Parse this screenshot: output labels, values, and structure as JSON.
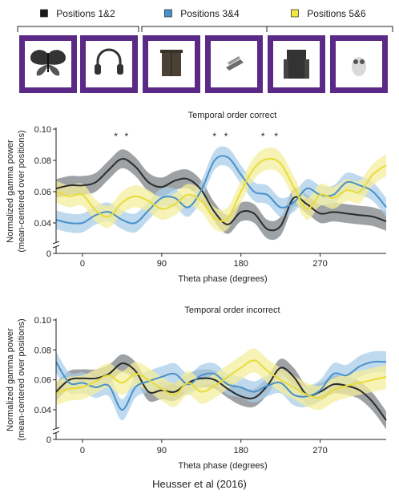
{
  "header": {
    "groups": [
      {
        "label": "Positions 1&2",
        "color": "#1a1a1a",
        "icons": [
          "butterfly-icon",
          "headphones-icon"
        ]
      },
      {
        "label": "Positions 3&4",
        "color": "#4a90c9",
        "icons": [
          "cabinet-icon",
          "clip-icon"
        ]
      },
      {
        "label": "Positions 5&6",
        "color": "#f2e640",
        "icons": [
          "tower-icon",
          "owl-icon"
        ]
      }
    ],
    "frame_color": "#5b2a86"
  },
  "chart_data": [
    {
      "type": "line",
      "title": "Temporal order correct",
      "xlabel": "Theta phase (degrees)",
      "ylabel": "Normalized gamma power\n(mean-centered over positions)",
      "xlim": [
        -30,
        345
      ],
      "ylim": [
        0.03,
        0.1
      ],
      "xticks": [
        0,
        90,
        180,
        270
      ],
      "yticks": [
        0.04,
        0.06,
        0.08,
        0.1
      ],
      "ytick_labels": [
        "0.04",
        "0.06",
        "0.08",
        "0.10"
      ],
      "zero_label": "0",
      "significance_marks": [
        {
          "x": 38,
          "label": "*"
        },
        {
          "x": 50,
          "label": "*"
        },
        {
          "x": 150,
          "label": "*"
        },
        {
          "x": 163,
          "label": "*"
        },
        {
          "x": 205,
          "label": "*"
        },
        {
          "x": 220,
          "label": "*"
        }
      ],
      "x": [
        -30,
        -15,
        0,
        15,
        30,
        45,
        60,
        75,
        90,
        105,
        120,
        135,
        150,
        165,
        180,
        195,
        210,
        225,
        240,
        255,
        270,
        285,
        300,
        315,
        330,
        345
      ],
      "series": [
        {
          "name": "Positions 1&2",
          "color": "#2b2b2b",
          "band": "#7d8387",
          "values": [
            0.062,
            0.064,
            0.064,
            0.066,
            0.074,
            0.081,
            0.076,
            0.066,
            0.063,
            0.067,
            0.068,
            0.061,
            0.047,
            0.039,
            0.047,
            0.046,
            0.036,
            0.038,
            0.056,
            0.052,
            0.046,
            0.047,
            0.046,
            0.045,
            0.044,
            0.041
          ],
          "err": 0.006
        },
        {
          "name": "Positions 3&4",
          "color": "#4a90c9",
          "band": "#a9cde8",
          "values": [
            0.042,
            0.04,
            0.04,
            0.045,
            0.047,
            0.042,
            0.04,
            0.048,
            0.056,
            0.056,
            0.05,
            0.061,
            0.08,
            0.082,
            0.071,
            0.06,
            0.058,
            0.05,
            0.053,
            0.062,
            0.058,
            0.058,
            0.066,
            0.064,
            0.06,
            0.05
          ],
          "err": 0.006
        },
        {
          "name": "Positions 5&6",
          "color": "#e8dc3a",
          "band": "#f4ee9c",
          "values": [
            0.06,
            0.057,
            0.058,
            0.048,
            0.044,
            0.053,
            0.057,
            0.054,
            0.049,
            0.052,
            0.058,
            0.054,
            0.043,
            0.043,
            0.06,
            0.075,
            0.081,
            0.078,
            0.063,
            0.049,
            0.058,
            0.056,
            0.061,
            0.06,
            0.071,
            0.077
          ],
          "err": 0.007
        }
      ]
    },
    {
      "type": "line",
      "title": "Temporal order incorrect",
      "xlabel": "Theta phase (degrees)",
      "ylabel": "Normalized gamma power\n(mean-centered over positions)",
      "xlim": [
        -30,
        345
      ],
      "ylim": [
        0.03,
        0.1
      ],
      "xticks": [
        0,
        90,
        180,
        270
      ],
      "yticks": [
        0.04,
        0.06,
        0.08,
        0.1
      ],
      "ytick_labels": [
        "0.04",
        "0.06",
        "0.08",
        "0.10"
      ],
      "zero_label": "0",
      "significance_marks": [],
      "x": [
        -30,
        -15,
        0,
        15,
        30,
        45,
        60,
        75,
        90,
        105,
        120,
        135,
        150,
        165,
        180,
        195,
        210,
        225,
        240,
        255,
        270,
        285,
        300,
        315,
        330,
        345
      ],
      "series": [
        {
          "name": "Positions 1&2",
          "color": "#2b2b2b",
          "band": "#7d8387",
          "values": [
            0.052,
            0.06,
            0.061,
            0.061,
            0.064,
            0.071,
            0.066,
            0.052,
            0.053,
            0.052,
            0.058,
            0.061,
            0.06,
            0.054,
            0.049,
            0.048,
            0.056,
            0.068,
            0.062,
            0.05,
            0.052,
            0.057,
            0.056,
            0.053,
            0.045,
            0.033
          ],
          "err": 0.006
        },
        {
          "name": "Positions 3&4",
          "color": "#4a90c9",
          "band": "#a9cde8",
          "values": [
            0.072,
            0.058,
            0.058,
            0.055,
            0.056,
            0.04,
            0.055,
            0.059,
            0.062,
            0.064,
            0.057,
            0.063,
            0.064,
            0.057,
            0.055,
            0.052,
            0.056,
            0.058,
            0.05,
            0.049,
            0.053,
            0.064,
            0.063,
            0.069,
            0.072,
            0.072
          ],
          "err": 0.007
        },
        {
          "name": "Positions 5&6",
          "color": "#e8dc3a",
          "band": "#f4ee9c",
          "values": [
            0.051,
            0.054,
            0.055,
            0.059,
            0.063,
            0.058,
            0.064,
            0.06,
            0.054,
            0.05,
            0.058,
            0.052,
            0.056,
            0.062,
            0.068,
            0.073,
            0.066,
            0.06,
            0.055,
            0.05,
            0.048,
            0.053,
            0.056,
            0.058,
            0.06,
            0.062
          ],
          "err": 0.008
        }
      ]
    }
  ],
  "footer": {
    "citation": "Heusser et al (2016)"
  }
}
